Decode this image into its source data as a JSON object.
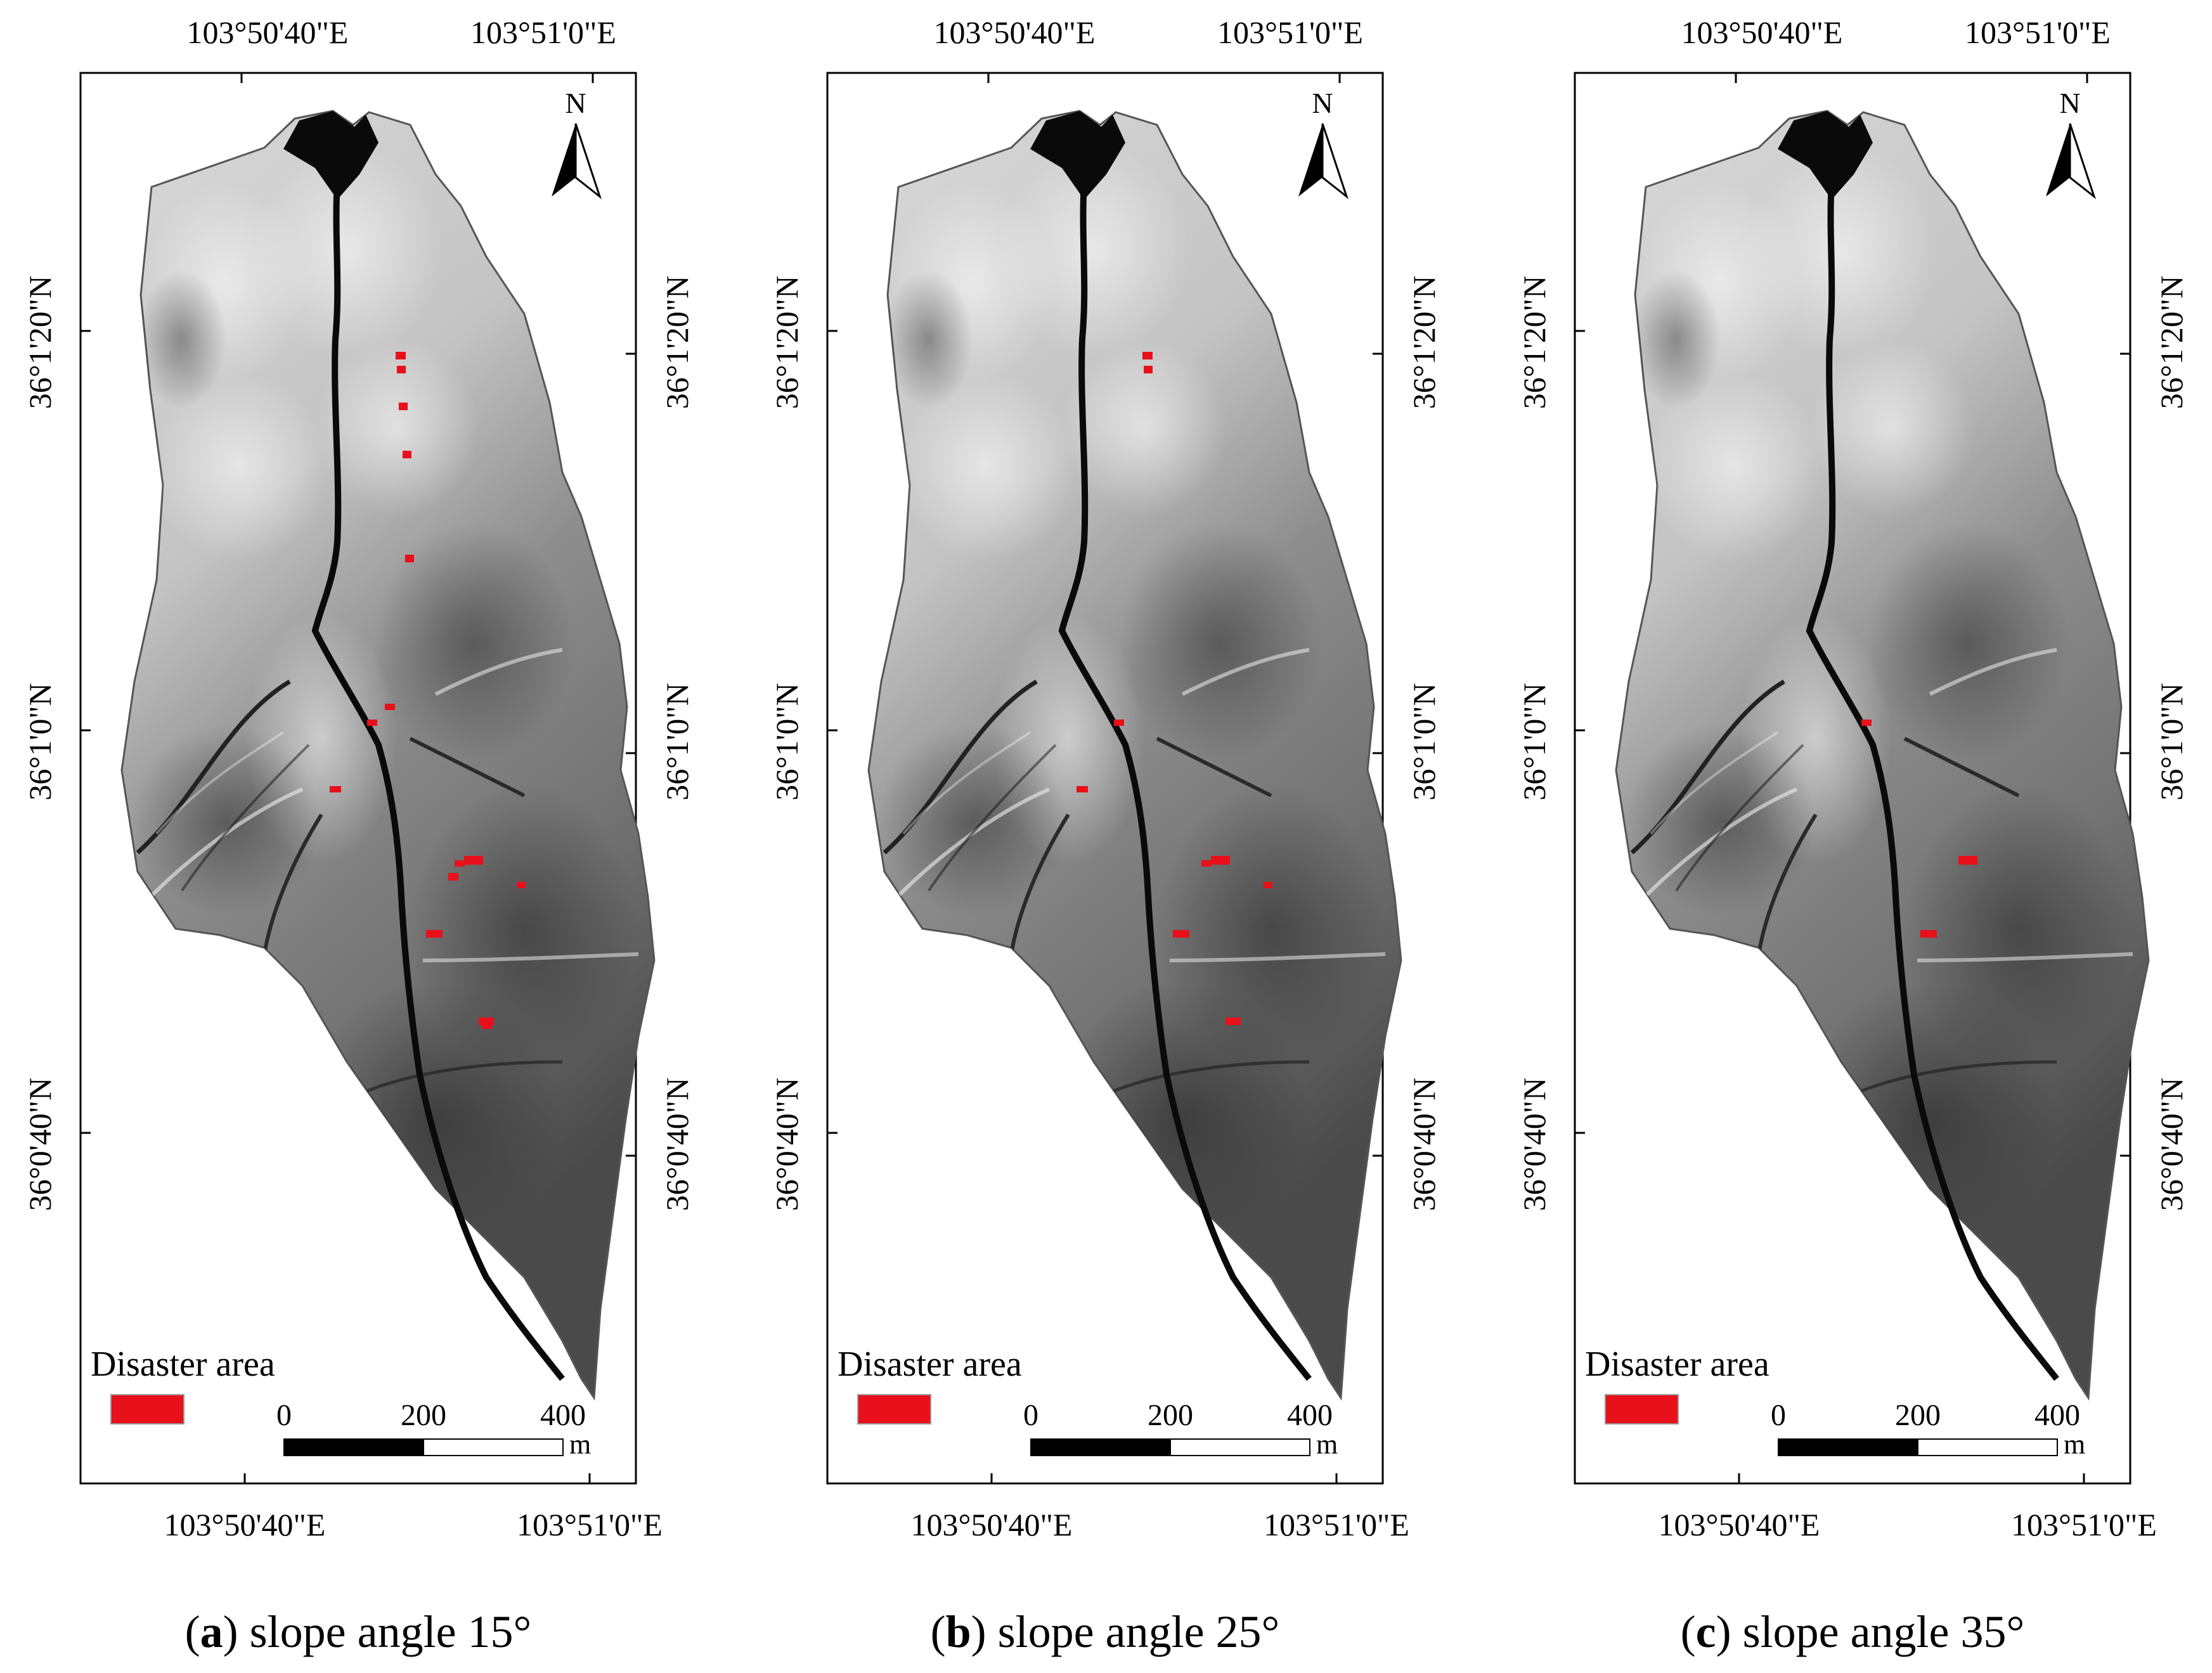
{
  "figure": {
    "panels": [
      {
        "id": "a",
        "caption_letter": "a",
        "caption_text": " slope angle 15°",
        "coords": {
          "top_left": "103°50'40\"E",
          "top_right": "103°51'0\"E",
          "bottom_left": "103°50'40\"E",
          "bottom_right": "103°51'0\"E",
          "left_upper": "36°1'20\"N",
          "left_mid": "36°1'0\"N",
          "left_lower": "36°0'40\"N",
          "right_upper": "36°1'20\"N",
          "right_mid": "36°1'0\"N",
          "right_lower": "36°0'40\"N"
        },
        "north_label": "N",
        "legend_label": "Disaster area",
        "legend_color": "#e8101a",
        "scale": {
          "ticks": [
            "0",
            "200",
            "400"
          ],
          "unit": "m"
        },
        "disaster_spots": 15
      },
      {
        "id": "b",
        "caption_letter": "b",
        "caption_text": " slope angle 25°",
        "coords": {
          "top_left": "103°50'40\"E",
          "top_right": "103°51'0\"E",
          "bottom_left": "103°50'40\"E",
          "bottom_right": "103°51'0\"E",
          "left_upper": "36°1'20\"N",
          "left_mid": "36°1'0\"N",
          "left_lower": "36°0'40\"N",
          "right_upper": "36°1'20\"N",
          "right_mid": "36°1'0\"N",
          "right_lower": "36°0'40\"N"
        },
        "north_label": "N",
        "legend_label": "Disaster area",
        "legend_color": "#e8101a",
        "scale": {
          "ticks": [
            "0",
            "200",
            "400"
          ],
          "unit": "m"
        },
        "disaster_spots": 9
      },
      {
        "id": "c",
        "caption_letter": "c",
        "caption_text": " slope angle 35°",
        "coords": {
          "top_left": "103°50'40\"E",
          "top_right": "103°51'0\"E",
          "bottom_left": "103°50'40\"E",
          "bottom_right": "103°51'0\"E",
          "left_upper": "36°1'20\"N",
          "left_mid": "36°1'0\"N",
          "left_lower": "36°0'40\"N",
          "right_upper": "36°1'20\"N",
          "right_mid": "36°1'0\"N",
          "right_lower": "36°0'40\"N"
        },
        "north_label": "N",
        "legend_label": "Disaster area",
        "legend_color": "#e8101a",
        "scale": {
          "ticks": [
            "0",
            "200",
            "400"
          ],
          "unit": "m"
        },
        "disaster_spots": 3
      }
    ]
  }
}
